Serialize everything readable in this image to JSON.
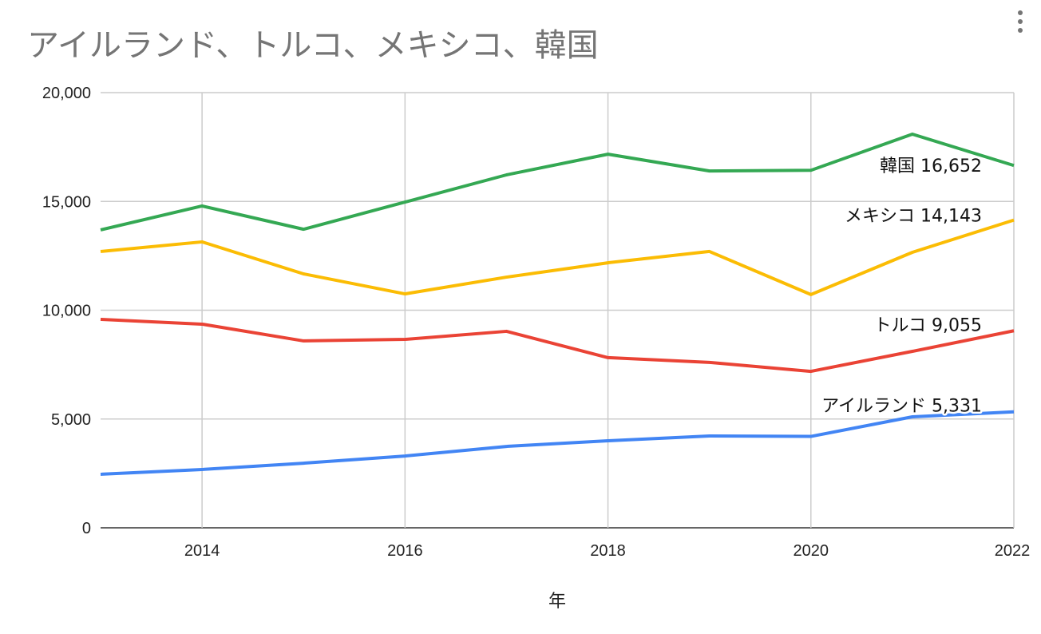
{
  "chart_data": {
    "type": "line",
    "title": "アイルランド、トルコ、メキシコ、韓国",
    "xlabel": "年",
    "ylabel": "",
    "x": [
      2013,
      2014,
      2015,
      2016,
      2017,
      2018,
      2019,
      2020,
      2021,
      2022
    ],
    "xlim": [
      2013,
      2022
    ],
    "ylim": [
      0,
      20000
    ],
    "x_ticks": [
      2014,
      2016,
      2018,
      2020,
      2022
    ],
    "y_ticks": [
      0,
      5000,
      10000,
      15000,
      20000
    ],
    "x_tick_labels": [
      "2014",
      "2016",
      "2018",
      "2020",
      "2022"
    ],
    "y_tick_labels": [
      "0",
      "5,000",
      "10,000",
      "15,000",
      "20,000"
    ],
    "grid": true,
    "legend": "none (end-of-line labels)",
    "series": [
      {
        "name": "韓国",
        "color": "#34a853",
        "label": "韓国 16,652",
        "values": [
          13690,
          14790,
          13720,
          14970,
          16220,
          17170,
          16400,
          16430,
          18090,
          16652
        ]
      },
      {
        "name": "メキシコ",
        "color": "#fbbc04",
        "label": "メキシコ 14,143",
        "values": [
          12700,
          13140,
          11670,
          10750,
          11520,
          12180,
          12700,
          10720,
          12660,
          14143
        ]
      },
      {
        "name": "トルコ",
        "color": "#ea4335",
        "label": "トルコ 9,055",
        "values": [
          9580,
          9360,
          8590,
          8660,
          9030,
          7820,
          7600,
          7190,
          8110,
          9055
        ]
      },
      {
        "name": "アイルランド",
        "color": "#4285f4",
        "label": "アイルランド 5,331",
        "values": [
          2460,
          2680,
          2970,
          3300,
          3740,
          4000,
          4220,
          4200,
          5100,
          5331
        ]
      }
    ]
  },
  "menu_icon": "more-vert-icon"
}
